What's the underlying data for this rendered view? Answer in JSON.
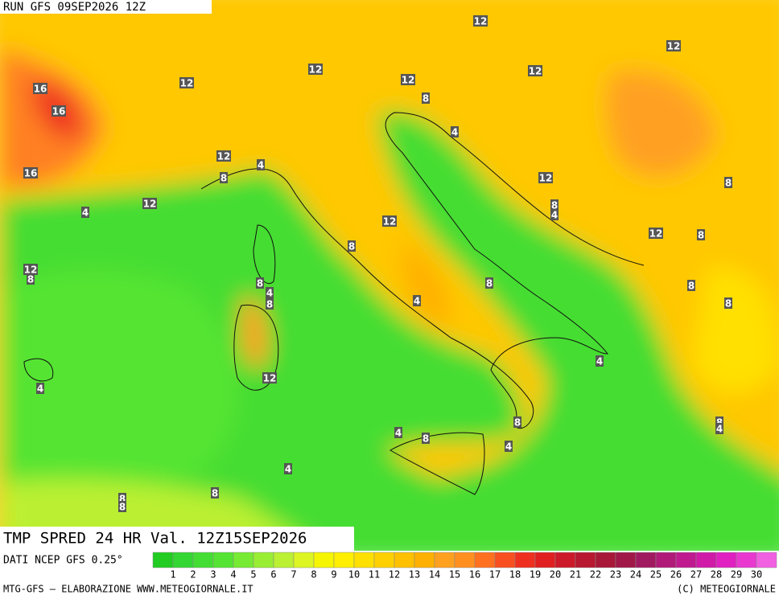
{
  "header": {
    "run": "RUN GFS 09SEP2026 12Z"
  },
  "map": {
    "labels": [
      16,
      16,
      16,
      12,
      12,
      12,
      12,
      12,
      12,
      8,
      4,
      12,
      8,
      4,
      12,
      4,
      12,
      8,
      8,
      4,
      12,
      12,
      8,
      8,
      12,
      8,
      8,
      4,
      8,
      8,
      8,
      4,
      8,
      4,
      12,
      4,
      8,
      8,
      4,
      4,
      8,
      4,
      4,
      8,
      8,
      8
    ]
  },
  "title": "TMP SPRED 24 HR Val. 12Z15SEP2026",
  "source": "DATI NCEP GFS 0.25°",
  "legend": {
    "colors": [
      "#22cc22",
      "#33d633",
      "#44dd33",
      "#55e433",
      "#77ea33",
      "#99ee33",
      "#bbf033",
      "#ddf522",
      "#f5f500",
      "#ffee00",
      "#ffe000",
      "#ffd000",
      "#ffc000",
      "#ffb000",
      "#ffa020",
      "#ff9020",
      "#ff7020",
      "#f85020",
      "#ee3020",
      "#e02020",
      "#cc1a2a",
      "#b81830",
      "#a81838",
      "#a01848",
      "#a01a60",
      "#b01a78",
      "#c01a90",
      "#d01aa8",
      "#e020c0",
      "#e838d0",
      "#f060e0"
    ],
    "ticks": [
      1,
      2,
      3,
      4,
      5,
      6,
      7,
      8,
      9,
      10,
      11,
      12,
      13,
      14,
      15,
      16,
      17,
      18,
      19,
      20,
      21,
      22,
      23,
      24,
      25,
      26,
      27,
      28,
      29,
      30
    ]
  },
  "footer": {
    "left": "MTG-GFS — ELABORAZIONE WWW.METEOGIORNALE.IT",
    "right": "(C) METEOGIORNALE"
  }
}
